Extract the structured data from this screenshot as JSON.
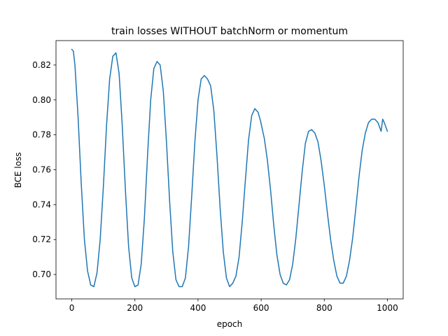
{
  "chart_data": {
    "type": "line",
    "title": "train losses WITHOUT batchNorm or momentum",
    "xlabel": "epoch",
    "ylabel": "BCE loss",
    "xlim": [
      -50,
      1050
    ],
    "ylim": [
      0.686,
      0.834
    ],
    "xticks": [
      0,
      200,
      400,
      600,
      800,
      1000
    ],
    "yticks": [
      0.7,
      0.72,
      0.74,
      0.76,
      0.78,
      0.8,
      0.82
    ],
    "xtick_labels": [
      "0",
      "200",
      "400",
      "600",
      "800",
      "1000"
    ],
    "ytick_labels": [
      "0.70",
      "0.72",
      "0.74",
      "0.76",
      "0.78",
      "0.80",
      "0.82"
    ],
    "grid": false,
    "color": "#1f77b4",
    "series": [
      {
        "x": [
          0,
          5,
          10,
          20,
          30,
          40,
          50,
          60,
          70,
          80,
          90,
          100,
          110,
          120,
          130,
          140,
          150,
          160,
          170,
          180,
          190,
          200,
          210,
          220,
          230,
          240,
          250,
          260,
          270,
          280,
          290,
          300,
          310,
          320,
          330,
          340,
          350,
          360,
          370,
          380,
          390,
          400,
          410,
          420,
          430,
          435,
          440,
          450,
          460,
          470,
          480,
          490,
          500,
          510,
          515,
          520,
          530,
          540,
          550,
          560,
          570,
          580,
          590,
          598,
          605,
          610,
          620,
          630,
          640,
          650,
          660,
          670,
          680,
          690,
          700,
          710,
          720,
          730,
          740,
          750,
          760,
          770,
          780,
          790,
          800,
          810,
          820,
          830,
          840,
          850,
          860,
          870,
          880,
          890,
          900,
          910,
          920,
          930,
          940,
          950,
          960,
          970,
          980,
          985,
          990,
          1000
        ],
        "y": [
          0.829,
          0.828,
          0.82,
          0.79,
          0.752,
          0.72,
          0.702,
          0.694,
          0.693,
          0.701,
          0.72,
          0.75,
          0.785,
          0.812,
          0.825,
          0.827,
          0.815,
          0.785,
          0.748,
          0.716,
          0.698,
          0.693,
          0.694,
          0.706,
          0.732,
          0.768,
          0.8,
          0.818,
          0.822,
          0.82,
          0.805,
          0.776,
          0.742,
          0.713,
          0.697,
          0.693,
          0.693,
          0.698,
          0.716,
          0.745,
          0.776,
          0.8,
          0.812,
          0.814,
          0.812,
          0.81,
          0.808,
          0.794,
          0.768,
          0.738,
          0.713,
          0.698,
          0.693,
          0.695,
          0.697,
          0.699,
          0.71,
          0.73,
          0.754,
          0.777,
          0.791,
          0.795,
          0.793,
          0.788,
          0.782,
          0.778,
          0.765,
          0.748,
          0.728,
          0.711,
          0.7,
          0.695,
          0.694,
          0.697,
          0.706,
          0.721,
          0.74,
          0.759,
          0.775,
          0.782,
          0.783,
          0.781,
          0.776,
          0.765,
          0.751,
          0.735,
          0.72,
          0.708,
          0.699,
          0.695,
          0.695,
          0.699,
          0.708,
          0.721,
          0.738,
          0.756,
          0.771,
          0.781,
          0.787,
          0.789,
          0.789,
          0.787,
          0.782,
          0.789,
          0.787,
          0.782
        ]
      }
    ]
  }
}
